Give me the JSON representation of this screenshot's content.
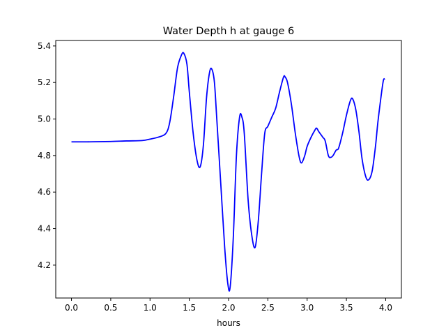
{
  "chart_data": {
    "type": "line",
    "title": "Water Depth h at gauge 6",
    "xlabel": "hours",
    "ylabel": "",
    "xlim": [
      -0.2,
      4.2
    ],
    "ylim": [
      4.02,
      5.43
    ],
    "xticks": [
      0.0,
      0.5,
      1.0,
      1.5,
      2.0,
      2.5,
      3.0,
      3.5,
      4.0
    ],
    "xtick_labels": [
      "0.0",
      "0.5",
      "1.0",
      "1.5",
      "2.0",
      "2.5",
      "3.0",
      "3.5",
      "4.0"
    ],
    "yticks": [
      4.2,
      4.4,
      4.6,
      4.8,
      5.0,
      5.2,
      5.4
    ],
    "ytick_labels": [
      "4.2",
      "4.4",
      "4.6",
      "4.8",
      "5.0",
      "5.2",
      "5.4"
    ],
    "grid": false,
    "series": [
      {
        "color": "#0000ff",
        "x": [
          0.0,
          0.2,
          0.5,
          0.7,
          0.9,
          1.0,
          1.1,
          1.2,
          1.25,
          1.3,
          1.35,
          1.4,
          1.43,
          1.47,
          1.5,
          1.55,
          1.6,
          1.64,
          1.68,
          1.72,
          1.76,
          1.79,
          1.82,
          1.85,
          1.9,
          1.95,
          1.99,
          2.02,
          2.06,
          2.1,
          2.14,
          2.17,
          2.2,
          2.25,
          2.3,
          2.34,
          2.38,
          2.42,
          2.46,
          2.5,
          2.55,
          2.6,
          2.65,
          2.7,
          2.72,
          2.75,
          2.8,
          2.85,
          2.9,
          2.93,
          2.97,
          3.0,
          3.05,
          3.1,
          3.12,
          3.15,
          3.2,
          3.23,
          3.27,
          3.3,
          3.33,
          3.37,
          3.4,
          3.45,
          3.5,
          3.55,
          3.58,
          3.62,
          3.66,
          3.7,
          3.75,
          3.79,
          3.83,
          3.87,
          3.9,
          3.94,
          3.97,
          3.99
        ],
        "y": [
          4.875,
          4.875,
          4.877,
          4.88,
          4.882,
          4.89,
          4.9,
          4.92,
          4.98,
          5.12,
          5.28,
          5.35,
          5.36,
          5.3,
          5.15,
          4.92,
          4.77,
          4.74,
          4.86,
          5.12,
          5.26,
          5.27,
          5.2,
          5.0,
          4.65,
          4.3,
          4.1,
          4.08,
          4.35,
          4.8,
          5.01,
          5.01,
          4.92,
          4.55,
          4.35,
          4.3,
          4.45,
          4.7,
          4.92,
          4.96,
          5.01,
          5.06,
          5.15,
          5.23,
          5.23,
          5.2,
          5.08,
          4.92,
          4.79,
          4.76,
          4.8,
          4.85,
          4.9,
          4.94,
          4.95,
          4.93,
          4.9,
          4.88,
          4.8,
          4.79,
          4.8,
          4.83,
          4.84,
          4.92,
          5.02,
          5.1,
          5.11,
          5.05,
          4.93,
          4.78,
          4.68,
          4.67,
          4.72,
          4.85,
          4.98,
          5.12,
          5.21,
          5.22
        ]
      }
    ]
  }
}
